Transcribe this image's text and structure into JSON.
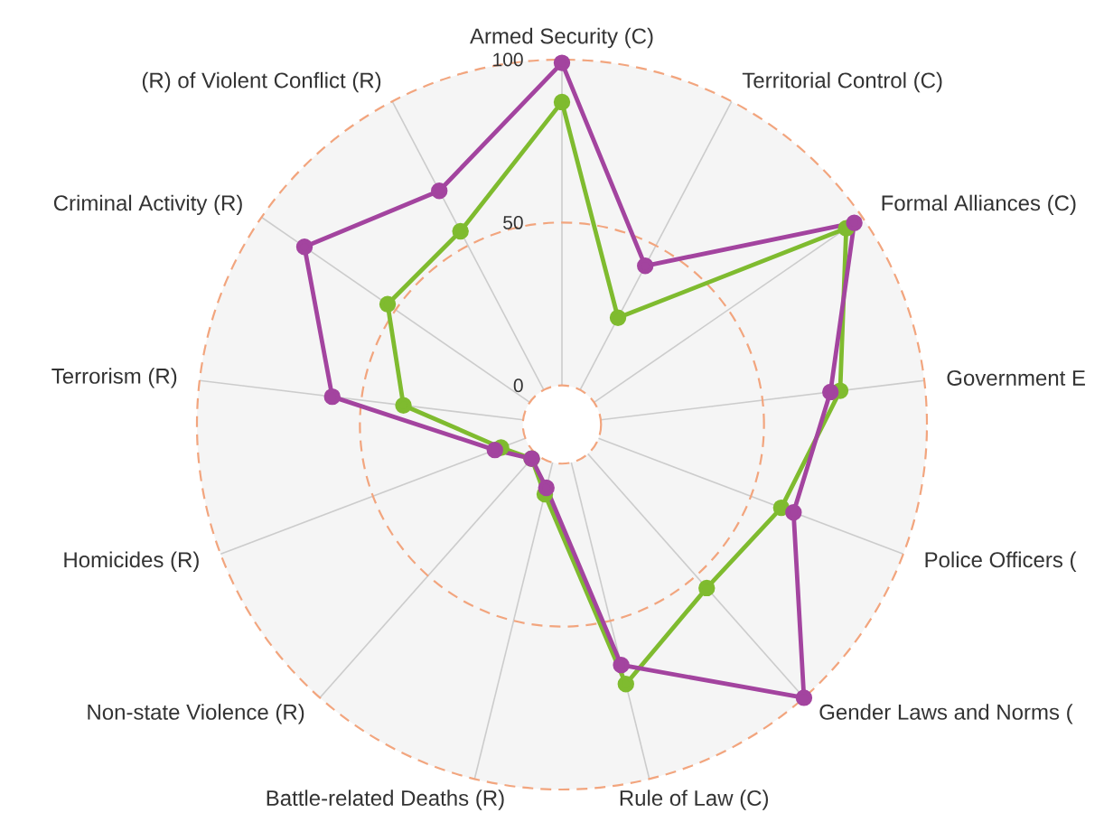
{
  "chart_data": {
    "type": "radar",
    "categories": [
      "Armed Security (C)",
      "Territorial Control (C)",
      "Formal Alliances (C)",
      "Government E",
      "Police Officers (",
      "Gender Laws and Norms (",
      "Rule of Law (C)",
      "Battle-related Deaths (R)",
      "Non-state Violence (R)",
      "Homicides (R)",
      "Terrorism (R)",
      "Criminal Activity (R)",
      "(R) of Violent Conflict (R)"
    ],
    "series": [
      {
        "color": "#7fbb2f",
        "values": [
          87,
          25,
          94,
          74,
          60,
          55,
          70,
          10,
          2,
          8,
          37,
          53,
          55
        ]
      },
      {
        "color": "#a3449f",
        "values": [
          99,
          43,
          97,
          71,
          64,
          100,
          64,
          8,
          2,
          10,
          59,
          84,
          69
        ]
      }
    ],
    "ylim": [
      -12,
      100
    ],
    "yticks": [
      0,
      50,
      100
    ],
    "grid": true,
    "marker": "circle",
    "line_style": "solid"
  }
}
